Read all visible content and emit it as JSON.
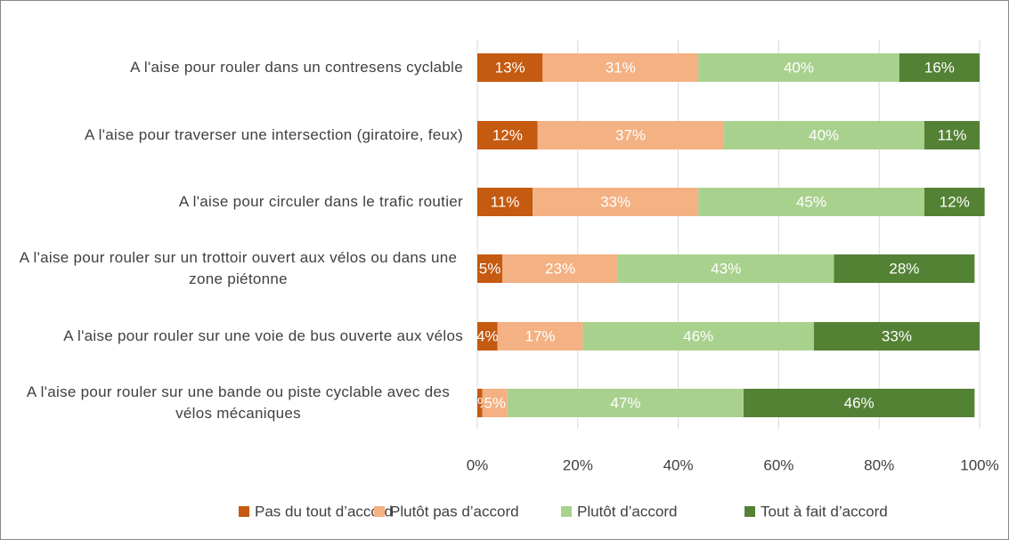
{
  "chart_data": {
    "type": "stacked_bar_horizontal",
    "categories": [
      "A l'aise pour rouler dans un contresens cyclable",
      "A l'aise pour traverser une intersection (giratoire, feux)",
      "A l'aise pour circuler dans le trafic routier",
      "A l'aise pour rouler sur un trottoir ouvert aux vélos ou dans une zone piétonne",
      "A l'aise pour rouler sur une voie de bus ouverte aux vélos",
      "A l'aise pour rouler sur une bande ou piste cyclable avec des vélos mécaniques"
    ],
    "series": [
      {
        "name": "Pas du tout d’accord",
        "color": "#c55a11",
        "values": [
          13,
          12,
          11,
          5,
          4,
          1
        ],
        "value_labels": [
          "13%",
          "12%",
          "11%",
          "5%",
          "4%",
          "1%"
        ]
      },
      {
        "name": "Plutôt pas d’accord",
        "color": "#f4b183",
        "values": [
          31,
          37,
          33,
          23,
          17,
          5
        ],
        "value_labels": [
          "31%",
          "37%",
          "33%",
          "23%",
          "17%",
          "5%"
        ]
      },
      {
        "name": "Plutôt d’accord",
        "color": "#a9d18e",
        "values": [
          40,
          40,
          45,
          43,
          46,
          47
        ],
        "value_labels": [
          "40%",
          "40%",
          "45%",
          "43%",
          "46%",
          "47%"
        ]
      },
      {
        "name": "Tout à fait d’accord",
        "color": "#548235",
        "values": [
          16,
          11,
          12,
          28,
          33,
          46
        ],
        "value_labels": [
          "16%",
          "11%",
          "12%",
          "28%",
          "33%",
          "46%"
        ]
      }
    ],
    "xlim": [
      0,
      100
    ],
    "xticks": [
      {
        "value": 0,
        "label": "0%"
      },
      {
        "value": 20,
        "label": "20%"
      },
      {
        "value": 40,
        "label": "40%"
      },
      {
        "value": 60,
        "label": "60%"
      },
      {
        "value": 80,
        "label": "80%"
      },
      {
        "value": 100,
        "label": "100%"
      }
    ],
    "grid": true,
    "legend": "bottom"
  }
}
